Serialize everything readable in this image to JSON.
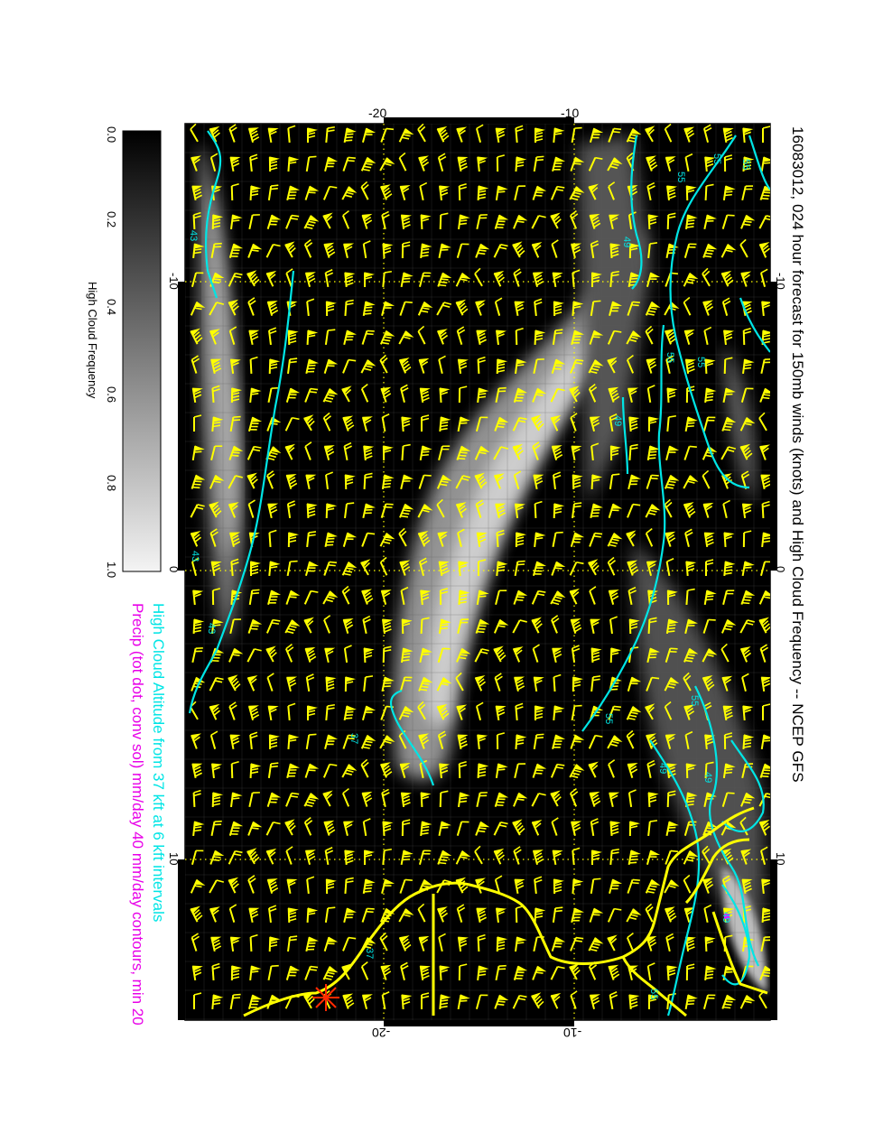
{
  "title": "16083012, 024 hour forecast for 150mb winds (knots) and High Cloud Frequency -- NCEP GFS",
  "notes": {
    "altitude": "High Cloud Altitude from 37 kft at 6 kft intervals",
    "precip": "Precip (tot dot, conv sol) mm/day 40 mm/day contours, min 20"
  },
  "colors": {
    "background": "#000000",
    "wind_barbs": "#ffff00",
    "coastline": "#ffff00",
    "altitude_contours": "#00e5e5",
    "altitude_note": "#00e5e5",
    "precip_note": "#e800e8",
    "marker": "#ff2a00"
  },
  "colorbar": {
    "label": "High Cloud Frequency",
    "ticks": [
      "0.0",
      "0.2",
      "0.4",
      "0.6",
      "0.8",
      "1.0"
    ],
    "range": [
      0.0,
      1.0
    ]
  },
  "axes": {
    "lat_ticks_top": [
      "-20",
      "-10"
    ],
    "lat_ticks_bottom": [
      "-20",
      "-10"
    ],
    "lon_ticks_left": [
      "-10",
      "0",
      "10"
    ],
    "lon_ticks_right": [
      "-10",
      "0",
      "10"
    ]
  },
  "contour_labels": [
    "55",
    "55",
    "55",
    "49",
    "55",
    "55",
    "49",
    "43",
    "37",
    "43",
    "37",
    "49",
    "55",
    "49",
    "55",
    "55",
    "43",
    "49"
  ]
}
